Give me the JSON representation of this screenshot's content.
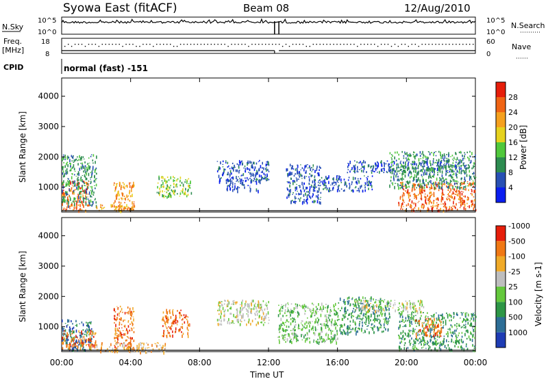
{
  "header": {
    "station": "Syowa East (fitACF)",
    "beam": "Beam 08",
    "date": "12/Aug/2010"
  },
  "summary_panels": {
    "nsky_label": "N.Sky",
    "nsearch_label": "N.Search",
    "noise_ticks": [
      "10^5",
      "10^0"
    ],
    "freq_label_line1": "Freq.",
    "freq_label_line2": "[MHz]",
    "freq_ticks": [
      "18",
      "8"
    ],
    "nave_label": "Nave",
    "nave_ticks": [
      "60",
      "0"
    ],
    "cpid_label": "CPID",
    "cpid_value": "normal (fast) -151"
  },
  "chart_data": [
    {
      "type": "heatmap",
      "title": "",
      "xlabel": "Time UT",
      "ylabel": "Slant Range [km]",
      "x_ticks": [
        "00:00",
        "04:00",
        "08:00",
        "12:00",
        "16:00",
        "20:00",
        "00:00"
      ],
      "xlim_hours": [
        0,
        24
      ],
      "y_ticks": [
        1000,
        2000,
        3000,
        4000
      ],
      "ylim": [
        180,
        4600
      ],
      "colorbar": {
        "label": "Power [dB]",
        "tick_labels": [
          "4",
          "8",
          "12",
          "16",
          "20",
          "24",
          "28"
        ],
        "range": [
          0,
          32
        ],
        "colors": [
          "#0a1ef0",
          "#2850b4",
          "#2d8c50",
          "#50c83c",
          "#e6d21e",
          "#f5a01e",
          "#f06414",
          "#e61e0a"
        ]
      },
      "scatter_regions": [
        {
          "t0": 0.0,
          "t1": 1.6,
          "r0": 250,
          "r1": 1250,
          "level": 6
        },
        {
          "t0": 0.0,
          "t1": 2.0,
          "r0": 400,
          "r1": 2100,
          "level": 2
        },
        {
          "t0": 3.0,
          "t1": 4.2,
          "r0": 300,
          "r1": 1200,
          "level": 5
        },
        {
          "t0": 2.0,
          "t1": 4.2,
          "r0": 250,
          "r1": 450,
          "level": 5
        },
        {
          "t0": 5.5,
          "t1": 7.5,
          "r0": 700,
          "r1": 1400,
          "level": 3
        },
        {
          "t0": 9.0,
          "t1": 12.0,
          "r0": 1200,
          "r1": 1900,
          "level": 1
        },
        {
          "t0": 9.5,
          "t1": 11.5,
          "r0": 900,
          "r1": 1300,
          "level": 1
        },
        {
          "t0": 13.0,
          "t1": 15.0,
          "r0": 500,
          "r1": 1800,
          "level": 1
        },
        {
          "t0": 15.0,
          "t1": 18.0,
          "r0": 900,
          "r1": 1400,
          "level": 1
        },
        {
          "t0": 16.5,
          "t1": 23.5,
          "r0": 1500,
          "r1": 1900,
          "level": 1
        },
        {
          "t0": 19.5,
          "t1": 24.0,
          "r0": 250,
          "r1": 1200,
          "level": 6
        },
        {
          "t0": 19.0,
          "t1": 24.0,
          "r0": 1000,
          "r1": 2200,
          "level": 2
        }
      ]
    },
    {
      "type": "heatmap",
      "title": "",
      "xlabel": "Time UT",
      "ylabel": "Slant Range [km]",
      "x_ticks": [
        "00:00",
        "04:00",
        "08:00",
        "12:00",
        "16:00",
        "20:00",
        "00:00"
      ],
      "xlim_hours": [
        0,
        24
      ],
      "y_ticks": [
        1000,
        2000,
        3000,
        4000
      ],
      "ylim": [
        180,
        4600
      ],
      "colorbar": {
        "label": "Velocity [m s-1]",
        "tick_labels": [
          "1000",
          "500",
          "100",
          "25",
          "-25",
          "-100",
          "-500",
          "-1000"
        ],
        "colors": [
          "#1e3cb4",
          "#2d6e96",
          "#2d9646",
          "#64c83c",
          "#bebebe",
          "#f0aa28",
          "#f07814",
          "#e61e0a"
        ]
      },
      "scatter_regions": [
        {
          "t0": 0.0,
          "t1": 1.8,
          "r0": 250,
          "r1": 1250,
          "level": 1
        },
        {
          "t0": 0.0,
          "t1": 2.0,
          "r0": 300,
          "r1": 900,
          "level": 6
        },
        {
          "t0": 3.0,
          "t1": 4.2,
          "r0": 300,
          "r1": 1700,
          "level": 6
        },
        {
          "t0": 5.8,
          "t1": 7.4,
          "r0": 700,
          "r1": 1600,
          "level": 6
        },
        {
          "t0": 2.0,
          "t1": 6.0,
          "r0": 180,
          "r1": 500,
          "level": 5
        },
        {
          "t0": 9.0,
          "t1": 12.0,
          "r0": 1100,
          "r1": 1900,
          "level": 4
        },
        {
          "t0": 12.5,
          "t1": 16.0,
          "r0": 500,
          "r1": 1800,
          "level": 3
        },
        {
          "t0": 16.0,
          "t1": 19.0,
          "r0": 800,
          "r1": 2000,
          "level": 2
        },
        {
          "t0": 17.0,
          "t1": 21.0,
          "r0": 1500,
          "r1": 1900,
          "level": 4
        },
        {
          "t0": 19.5,
          "t1": 24.0,
          "r0": 250,
          "r1": 1500,
          "level": 2
        },
        {
          "t0": 20.5,
          "t1": 22.0,
          "r0": 700,
          "r1": 1300,
          "level": 6
        }
      ]
    }
  ],
  "legend_icons": {
    "nsearch_style": "dotted-line",
    "nave_style": "dotted-line"
  }
}
